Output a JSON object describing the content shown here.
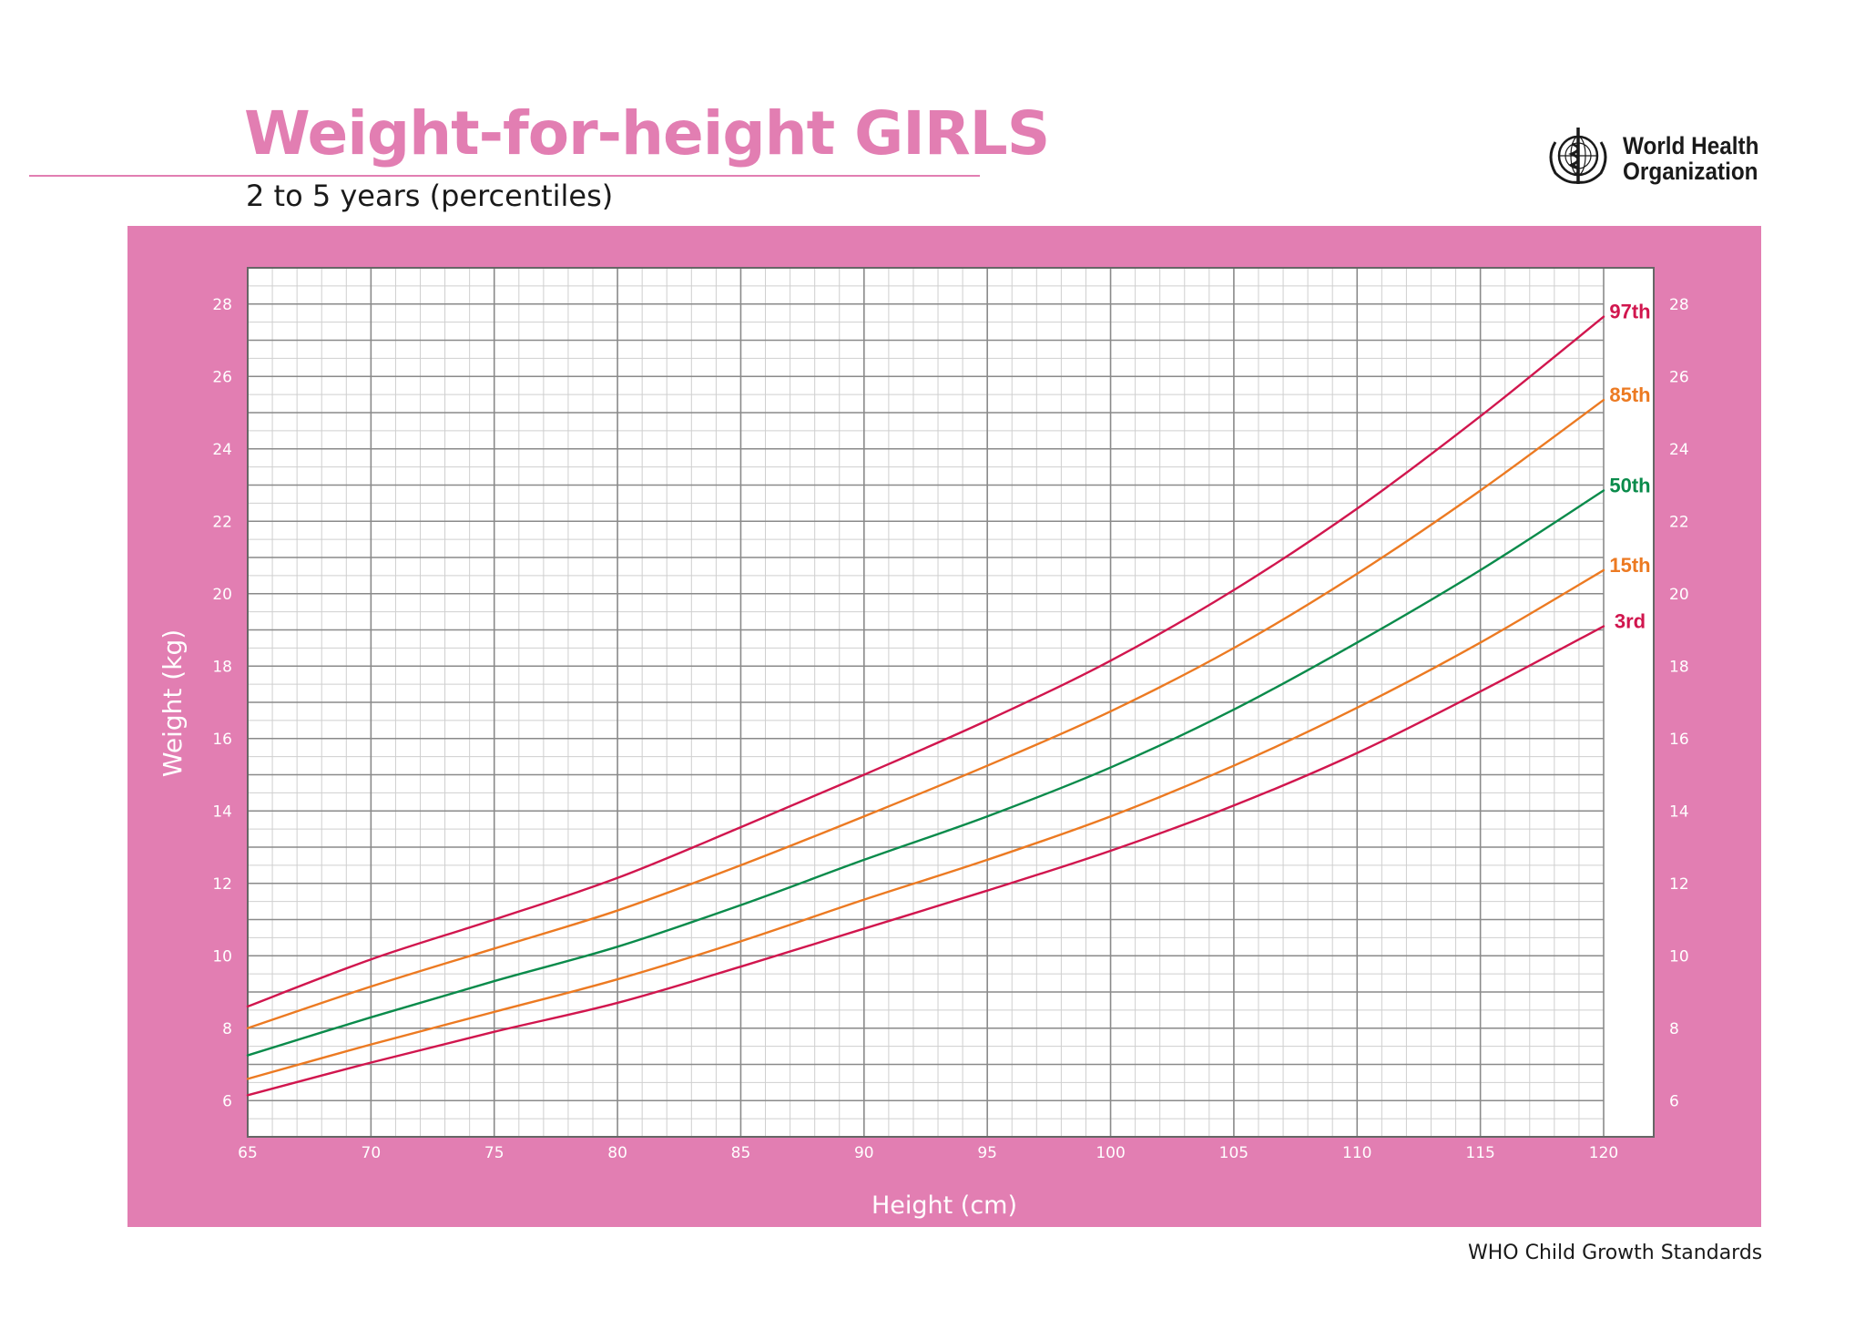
{
  "header": {
    "title": "Weight-for-height GIRLS",
    "subtitle": "2 to 5 years (percentiles)",
    "org_line1": "World Health",
    "org_line2": "Organization",
    "logo_icon": "who-emblem-icon"
  },
  "footer": {
    "text": "WHO Child Growth Standards"
  },
  "colors": {
    "pink": "#e27eb2",
    "red": "#d1164e",
    "orange": "#ec7a22",
    "green": "#0a8b4b"
  },
  "chart_data": {
    "type": "line",
    "xlabel": "Height (cm)",
    "ylabel": "Weight (kg)",
    "xlim": [
      65,
      120
    ],
    "ylim": [
      5,
      29
    ],
    "x_ticks": [
      65,
      70,
      75,
      80,
      85,
      90,
      95,
      100,
      105,
      110,
      115,
      120
    ],
    "y_ticks": [
      6,
      8,
      10,
      12,
      14,
      16,
      18,
      20,
      22,
      24,
      26,
      28
    ],
    "grid": true,
    "legend": "line-end labels at right",
    "x": [
      65,
      70,
      75,
      80,
      85,
      90,
      95,
      100,
      105,
      110,
      115,
      120
    ],
    "series": [
      {
        "name": "97th",
        "color": "#d1164e",
        "values": [
          8.6,
          9.9,
          11.0,
          12.15,
          13.55,
          15.0,
          16.5,
          18.15,
          20.1,
          22.35,
          24.9,
          27.65
        ]
      },
      {
        "name": "85th",
        "color": "#ec7a22",
        "values": [
          8.0,
          9.15,
          10.2,
          11.25,
          12.5,
          13.85,
          15.25,
          16.75,
          18.5,
          20.55,
          22.85,
          25.35
        ]
      },
      {
        "name": "50th",
        "color": "#0a8b4b",
        "values": [
          7.25,
          8.3,
          9.3,
          10.25,
          11.4,
          12.65,
          13.85,
          15.2,
          16.8,
          18.65,
          20.65,
          22.85
        ]
      },
      {
        "name": "15th",
        "color": "#ec7a22",
        "values": [
          6.6,
          7.55,
          8.45,
          9.35,
          10.4,
          11.55,
          12.65,
          13.85,
          15.25,
          16.85,
          18.65,
          20.65
        ]
      },
      {
        "name": "3rd",
        "color": "#d1164e",
        "values": [
          6.15,
          7.05,
          7.9,
          8.7,
          9.7,
          10.75,
          11.8,
          12.9,
          14.15,
          15.6,
          17.3,
          19.1
        ]
      }
    ]
  }
}
